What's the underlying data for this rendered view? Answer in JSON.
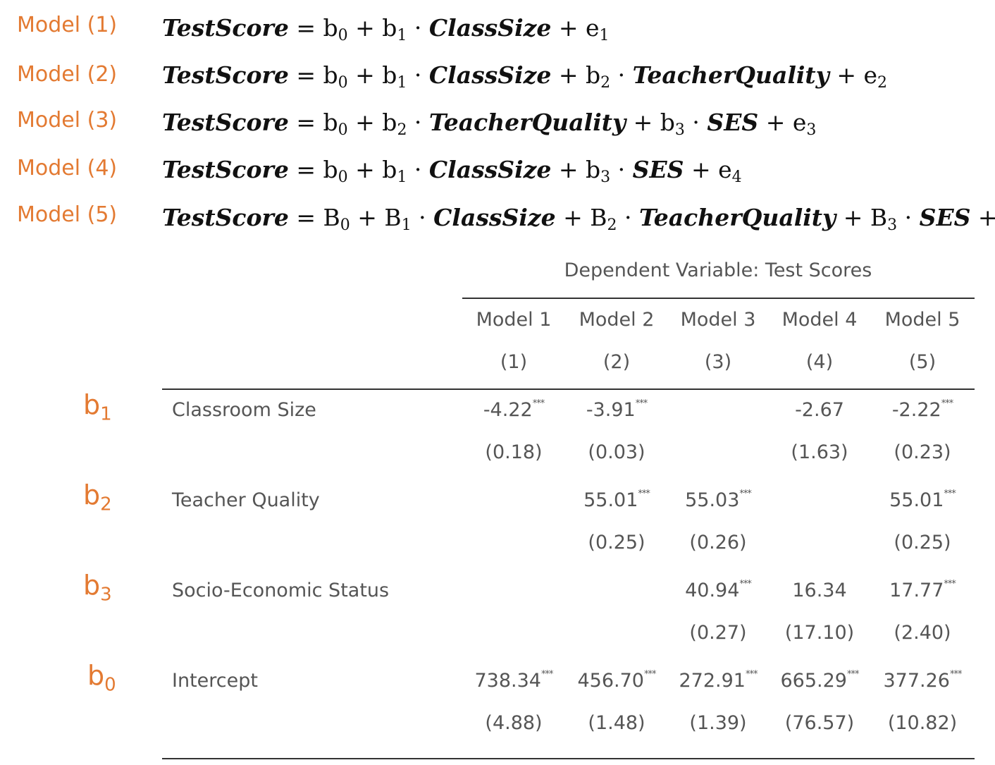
{
  "models": [
    {
      "label": "Model (1)"
    },
    {
      "label": "Model (2)"
    },
    {
      "label": "Model (3)"
    },
    {
      "label": "Model (4)"
    },
    {
      "label": "Model (5)"
    }
  ],
  "table": {
    "header": "Dependent Variable: Test Scores",
    "columns": [
      {
        "name": "Model 1",
        "num": "(1)"
      },
      {
        "name": "Model 2",
        "num": "(2)"
      },
      {
        "name": "Model 3",
        "num": "(3)"
      },
      {
        "name": "Model 4",
        "num": "(4)"
      },
      {
        "name": "Model 5",
        "num": "(5)"
      }
    ],
    "rows": [
      {
        "coef": "b",
        "coef_sub": "1",
        "label": "Classroom Size",
        "values": [
          "-4.22",
          "-3.91",
          "",
          "-2.67",
          "-2.22"
        ],
        "stars": [
          "***",
          "***",
          "",
          "",
          "***"
        ],
        "se": [
          "(0.18)",
          "(0.03)",
          "",
          "(1.63)",
          "(0.23)"
        ]
      },
      {
        "coef": "b",
        "coef_sub": "2",
        "label": "Teacher Quality",
        "values": [
          "",
          "55.01",
          "55.03",
          "",
          "55.01"
        ],
        "stars": [
          "",
          "***",
          "***",
          "",
          "***"
        ],
        "se": [
          "",
          "(0.25)",
          "(0.26)",
          "",
          "(0.25)"
        ]
      },
      {
        "coef": "b",
        "coef_sub": "3",
        "label": "Socio-Economic Status",
        "values": [
          "",
          "",
          "40.94",
          "16.34",
          "17.77"
        ],
        "stars": [
          "",
          "",
          "***",
          "",
          "***"
        ],
        "se": [
          "",
          "",
          "(0.27)",
          "(17.10)",
          "(2.40)"
        ]
      },
      {
        "coef": "b",
        "coef_sub": "0",
        "label": "Intercept",
        "values": [
          "738.34",
          "456.70",
          "272.91",
          "665.29",
          "377.26"
        ],
        "stars": [
          "***",
          "***",
          "***",
          "***",
          "***"
        ],
        "se": [
          "(4.88)",
          "(1.48)",
          "(1.39)",
          "(76.57)",
          "(10.82)"
        ]
      }
    ]
  }
}
